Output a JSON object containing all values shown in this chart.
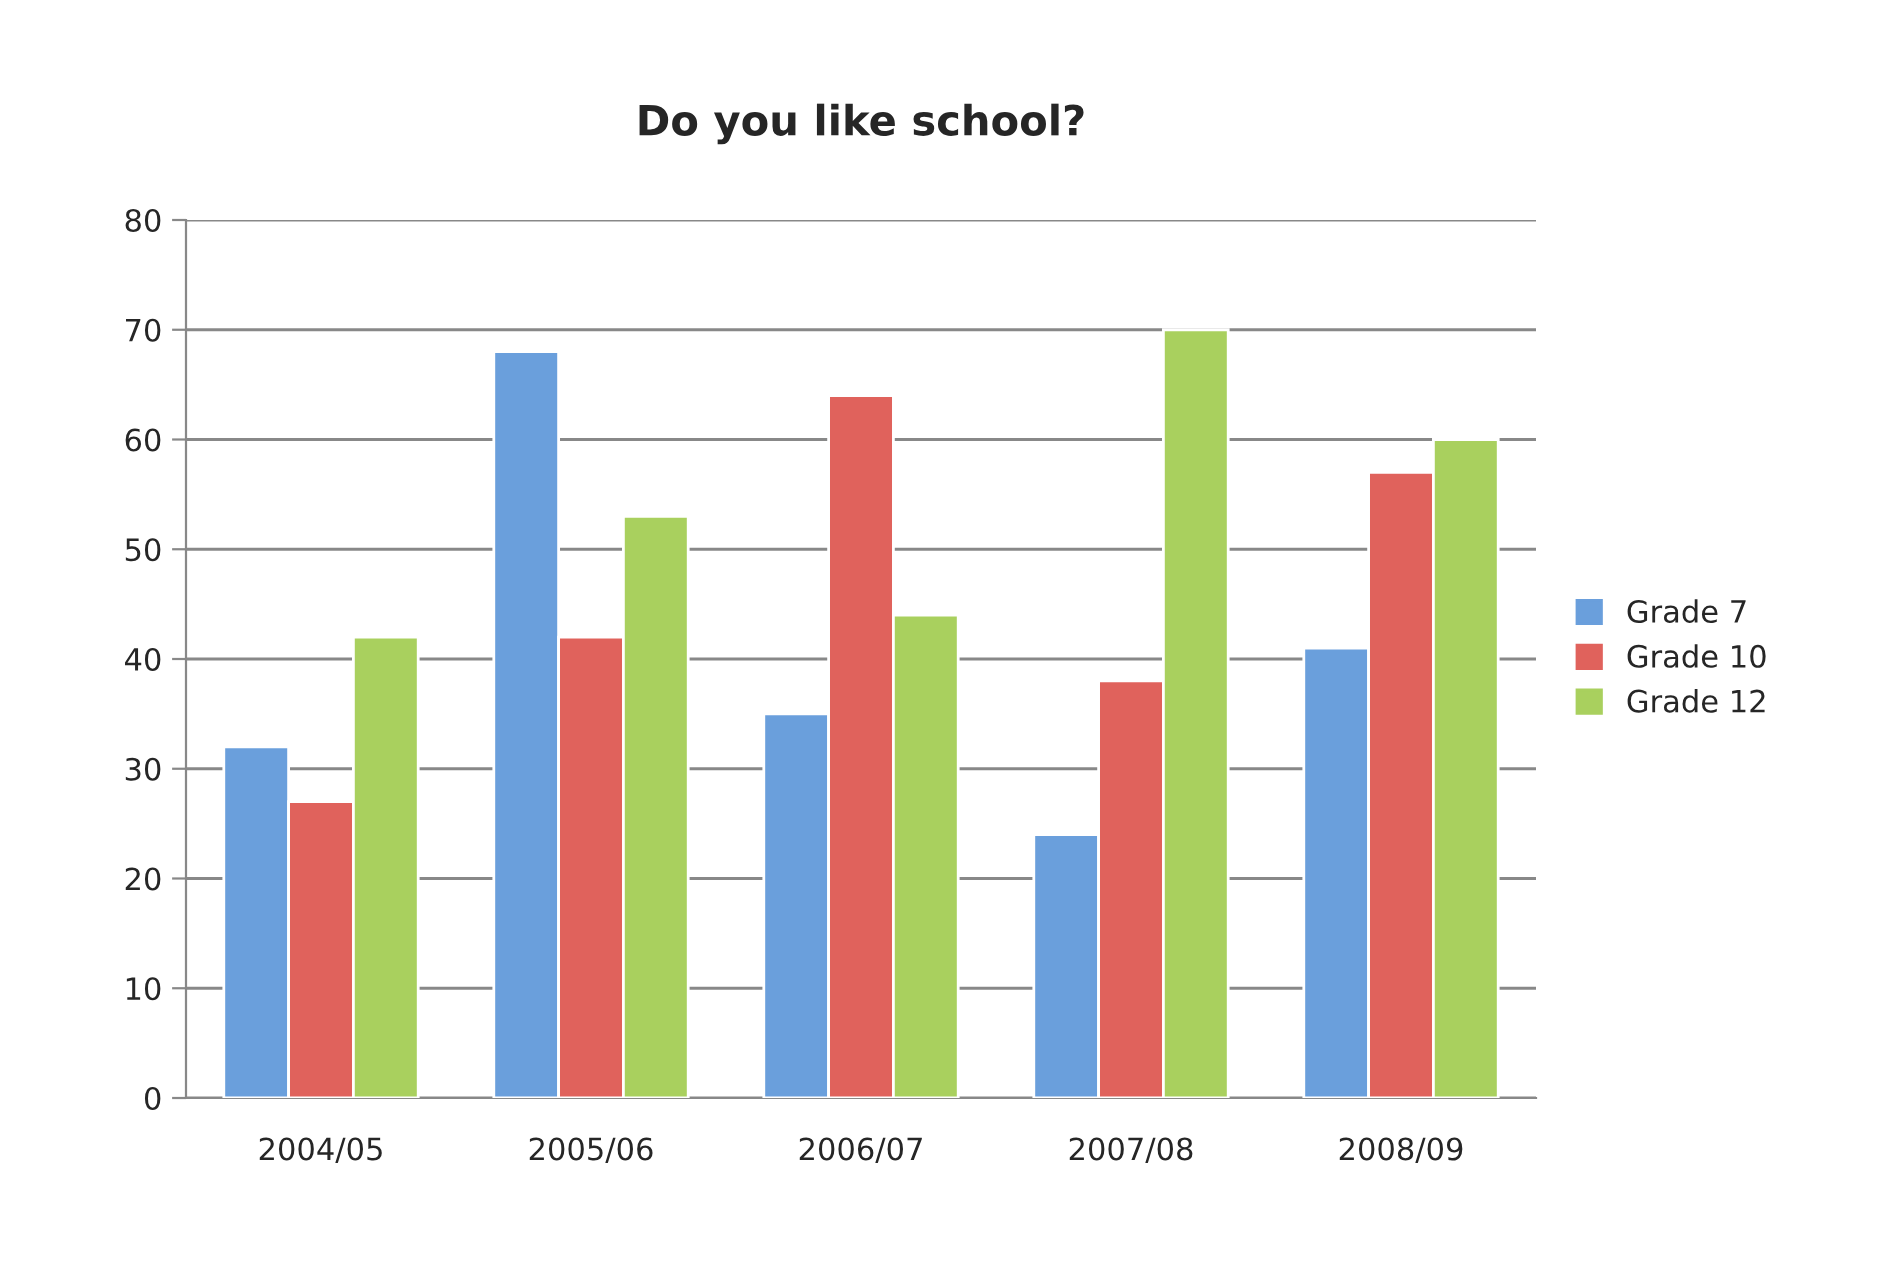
{
  "chart_data": {
    "type": "bar",
    "title": "Do you like school?",
    "categories": [
      "2004/05",
      "2005/06",
      "2006/07",
      "2007/08",
      "2008/09"
    ],
    "series": [
      {
        "name": "Grade 7",
        "color": "#6a9fdc",
        "values": [
          32,
          68,
          35,
          24,
          41
        ]
      },
      {
        "name": "Grade 10",
        "color": "#e0625c",
        "values": [
          27,
          42,
          64,
          38,
          57
        ]
      },
      {
        "name": "Grade 12",
        "color": "#a9d05e",
        "values": [
          42,
          53,
          44,
          70,
          60
        ]
      }
    ],
    "ylim": [
      0,
      80
    ],
    "yticks": [
      0,
      10,
      20,
      30,
      40,
      50,
      60,
      70,
      80
    ],
    "grid": "y",
    "legend": "right"
  }
}
